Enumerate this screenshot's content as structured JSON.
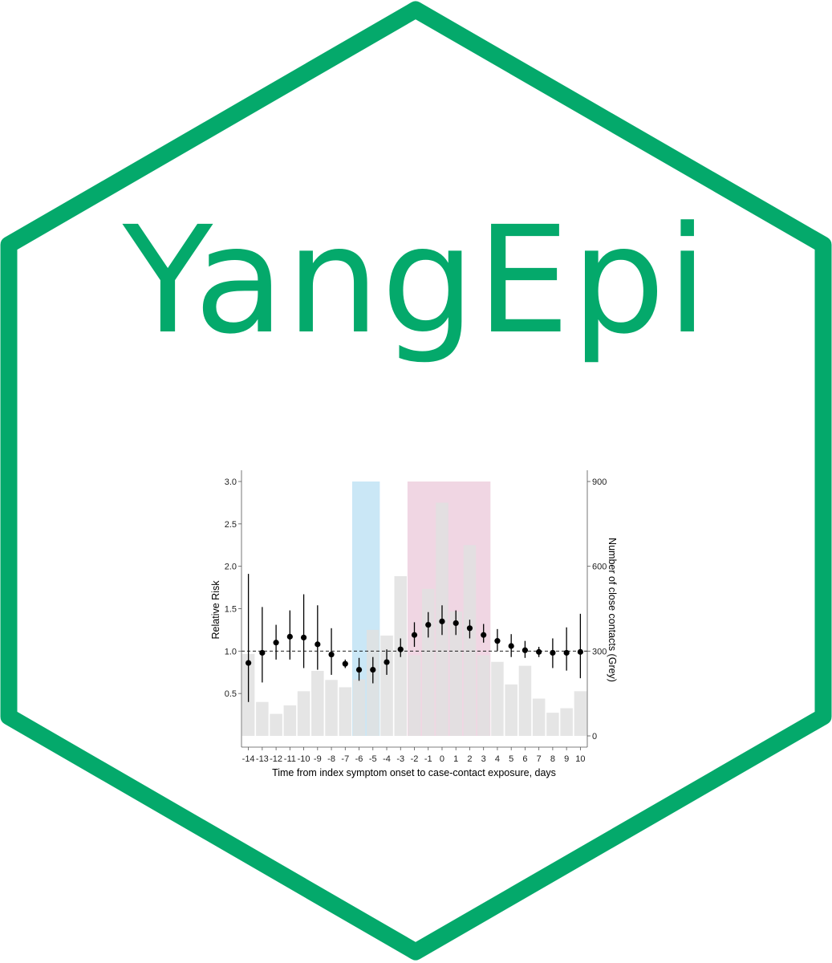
{
  "logo": {
    "text": "YangEpi",
    "brand_color": "#04A96B"
  },
  "chart_data": {
    "type": "bar+pointrange",
    "x_categories": [
      "-14",
      "-13",
      "-12",
      "-11",
      "-10",
      "-9",
      "-8",
      "-7",
      "-6",
      "-5",
      "-4",
      "-3",
      "-2",
      "-1",
      "0",
      "1",
      "2",
      "3",
      "4",
      "5",
      "6",
      "7",
      "8",
      "9",
      "10"
    ],
    "xlabel": "Time from index symptom onset to case-contact exposure, days",
    "ylabel_left": "Relative Risk",
    "ylabel_right": "Number of close contacts (Grey)",
    "ylim_left": [
      0,
      3.0
    ],
    "yticks_left": [
      "0.5",
      "1.0",
      "1.5",
      "2.0",
      "2.5",
      "3.0"
    ],
    "ylim_right": [
      0,
      900
    ],
    "yticks_right": [
      "0",
      "300",
      "600",
      "900"
    ],
    "reference_line_rr": 1.0,
    "bars_close_contacts": [
      290,
      120,
      78,
      108,
      158,
      230,
      198,
      172,
      200,
      375,
      355,
      565,
      285,
      520,
      825,
      440,
      675,
      285,
      262,
      182,
      248,
      132,
      82,
      98,
      158
    ],
    "relative_risk": {
      "point": [
        0.86,
        0.98,
        1.1,
        1.17,
        1.16,
        1.08,
        0.96,
        0.85,
        0.78,
        0.78,
        0.87,
        1.02,
        1.19,
        1.31,
        1.35,
        1.33,
        1.27,
        1.19,
        1.12,
        1.06,
        1.01,
        0.99,
        0.98,
        0.98,
        0.99
      ],
      "lower": [
        0.4,
        0.63,
        0.9,
        0.9,
        0.8,
        0.78,
        0.72,
        0.8,
        0.65,
        0.62,
        0.72,
        0.93,
        1.05,
        1.16,
        1.19,
        1.19,
        1.15,
        1.1,
        1.0,
        0.93,
        0.92,
        0.93,
        0.8,
        0.77,
        0.68
      ],
      "upper": [
        1.91,
        1.52,
        1.31,
        1.48,
        1.67,
        1.54,
        1.27,
        0.9,
        0.92,
        0.93,
        1.02,
        1.15,
        1.34,
        1.46,
        1.54,
        1.48,
        1.37,
        1.32,
        1.26,
        1.2,
        1.12,
        1.05,
        1.15,
        1.28,
        1.44
      ]
    },
    "highlight_regions": [
      {
        "from": "-6",
        "to": "-5",
        "color": "#9FD3EF"
      },
      {
        "from": "-2",
        "to": "3",
        "color": "#E4B5CC"
      }
    ],
    "colors": {
      "bars": "#E1E1E1",
      "points": "#000000",
      "reference_line": "#000000"
    },
    "grid": false
  }
}
